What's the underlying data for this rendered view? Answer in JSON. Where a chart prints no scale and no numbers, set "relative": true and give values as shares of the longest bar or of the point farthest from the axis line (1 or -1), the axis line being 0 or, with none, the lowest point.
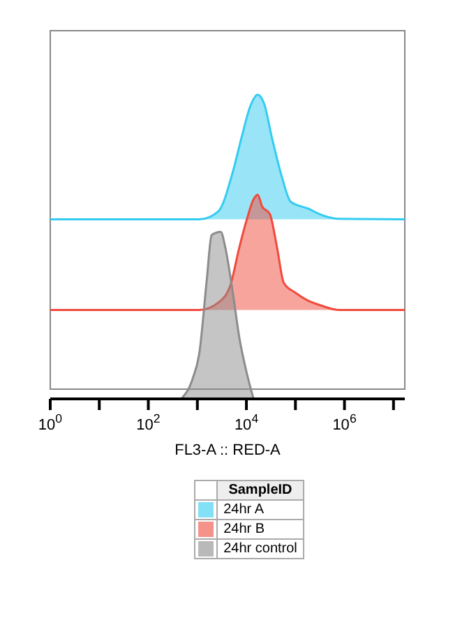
{
  "chart_data": {
    "type": "area",
    "relative": true,
    "xlabel": "FL3-A :: RED-A",
    "log": "x",
    "xlim": [
      1,
      17000000
    ],
    "xticks": [
      {
        "value": 1,
        "label": "10$^{0}$"
      },
      {
        "value": 10,
        "label": null
      },
      {
        "value": 100,
        "label": "10$^{2}$"
      },
      {
        "value": 1000,
        "label": null
      },
      {
        "value": 10000,
        "label": "10$^{4}$"
      },
      {
        "value": 100000,
        "label": null
      },
      {
        "value": 1000000,
        "label": "10$^{6}$"
      },
      {
        "value": 10000000,
        "label": null
      }
    ],
    "legend": "bottom",
    "legend_title": "SampleID",
    "marker": "none",
    "line_style": "solid",
    "series": [
      {
        "name": "24hr A",
        "color": "#33ccf0",
        "x": [
          1,
          1100,
          2700,
          5200,
          8000,
          12000,
          17000,
          23000,
          33000,
          52000,
          80000,
          190000,
          300000,
          720000,
          17000000
        ],
        "values": [
          0.59,
          0.59,
          0.617,
          0.742,
          0.86,
          0.962,
          1,
          0.97,
          0.86,
          0.734,
          0.648,
          0.624,
          0.608,
          0.592,
          0.59
        ]
      },
      {
        "name": "24hr B",
        "color": "#f04a3c",
        "x": [
          1,
          1100,
          2700,
          4700,
          7200,
          10000,
          14000,
          17000,
          21000,
          30000,
          42000,
          58000,
          100000,
          170000,
          330000,
          800000,
          17000000
        ],
        "values": [
          0.292,
          0.292,
          0.317,
          0.373,
          0.499,
          0.585,
          0.656,
          0.671,
          0.632,
          0.608,
          0.499,
          0.381,
          0.349,
          0.325,
          0.307,
          0.292,
          0.292
        ]
      },
      {
        "name": "24hr control",
        "color": "#8c8c8c",
        "x": [
          470,
          800,
          1100,
          1550,
          1950,
          2400,
          3000,
          3700,
          5200,
          7200,
          10000,
          14000
        ],
        "values": [
          0,
          0.066,
          0.152,
          0.388,
          0.538,
          0.546,
          0.549,
          0.499,
          0.357,
          0.2,
          0.09,
          0
        ]
      }
    ]
  }
}
